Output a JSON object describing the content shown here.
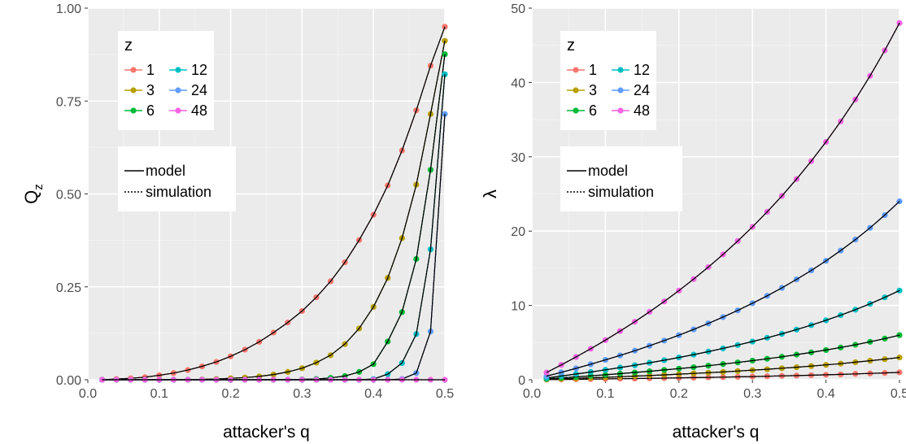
{
  "chart_data": [
    {
      "type": "line",
      "xlabel": "attacker's q",
      "ylabel": "Q",
      "ylabel_sub": "z",
      "xlim": [
        0,
        0.5
      ],
      "ylim": [
        0,
        1.0
      ],
      "x_ticks": [
        0.0,
        0.1,
        0.2,
        0.3,
        0.4,
        0.5
      ],
      "x_tick_labels": [
        "0.0",
        "0.1",
        "0.2",
        "0.3",
        "0.4",
        "0.5"
      ],
      "y_ticks": [
        0,
        0.25,
        0.5,
        0.75,
        1.0
      ],
      "y_tick_labels": [
        "0.00",
        "0.25",
        "0.50",
        "0.75",
        "1.00"
      ],
      "grid": true,
      "legend_placement": "top-left",
      "legend_title": "z",
      "line_legend": [
        "model",
        "simulation"
      ],
      "x": [
        0.02,
        0.04,
        0.06,
        0.08,
        0.1,
        0.12,
        0.14,
        0.16,
        0.18,
        0.2,
        0.22,
        0.24,
        0.26,
        0.28,
        0.3,
        0.32,
        0.34,
        0.36,
        0.38,
        0.4,
        0.42,
        0.44,
        0.46,
        0.48,
        0.5
      ],
      "series": [
        {
          "name": "1",
          "color": "#F8766D",
          "values": [
            0.0,
            0.002,
            0.004,
            0.007,
            0.012,
            0.018,
            0.026,
            0.036,
            0.048,
            0.063,
            0.081,
            0.102,
            0.127,
            0.154,
            0.185,
            0.222,
            0.265,
            0.316,
            0.376,
            0.444,
            0.523,
            0.617,
            0.725,
            0.845,
            0.95
          ]
        },
        {
          "name": "3",
          "color": "#B79F00",
          "values": [
            0.0,
            0.0,
            0.0,
            0.0,
            0.0,
            0.0,
            0.0,
            0.001,
            0.002,
            0.004,
            0.006,
            0.009,
            0.014,
            0.021,
            0.031,
            0.046,
            0.066,
            0.096,
            0.138,
            0.196,
            0.274,
            0.381,
            0.525,
            0.715,
            0.912
          ]
        },
        {
          "name": "6",
          "color": "#00BA38",
          "values": [
            0.0,
            0.0,
            0.0,
            0.0,
            0.0,
            0.0,
            0.0,
            0.0,
            0.0,
            0.0,
            0.0,
            0.0,
            0.0,
            0.0,
            0.001,
            0.002,
            0.005,
            0.01,
            0.021,
            0.042,
            0.103,
            0.182,
            0.325,
            0.565,
            0.876
          ]
        },
        {
          "name": "12",
          "color": "#00BFC4",
          "values": [
            0.0,
            0.0,
            0.0,
            0.0,
            0.0,
            0.0,
            0.0,
            0.0,
            0.0,
            0.0,
            0.0,
            0.0,
            0.0,
            0.0,
            0.0,
            0.0,
            0.0,
            0.0,
            0.0,
            0.002,
            0.015,
            0.045,
            0.123,
            0.351,
            0.822
          ]
        },
        {
          "name": "24",
          "color": "#619CFF",
          "values": [
            0.0,
            0.0,
            0.0,
            0.0,
            0.0,
            0.0,
            0.0,
            0.0,
            0.0,
            0.0,
            0.0,
            0.0,
            0.0,
            0.0,
            0.0,
            0.0,
            0.0,
            0.0,
            0.0,
            0.0,
            0.0,
            0.002,
            0.018,
            0.13,
            0.715
          ]
        },
        {
          "name": "48",
          "color": "#F564E3",
          "values": [
            0.0,
            0.0,
            0.0,
            0.0,
            0.0,
            0.0,
            0.0,
            0.0,
            0.0,
            0.0,
            0.0,
            0.0,
            0.0,
            0.0,
            0.0,
            0.0,
            0.0,
            0.0,
            0.0,
            0.0,
            0.0,
            0.0,
            0.0,
            0.0,
            0.0
          ]
        }
      ]
    },
    {
      "type": "line",
      "xlabel": "attacker's q",
      "ylabel": "λ",
      "ylabel_sub": "",
      "xlim": [
        0,
        0.5
      ],
      "ylim": [
        0,
        50
      ],
      "x_ticks": [
        0.0,
        0.1,
        0.2,
        0.3,
        0.4,
        0.5
      ],
      "x_tick_labels": [
        "0.0",
        "0.1",
        "0.2",
        "0.3",
        "0.4",
        "0.5"
      ],
      "y_ticks": [
        0,
        10,
        20,
        30,
        40,
        50
      ],
      "y_tick_labels": [
        "0",
        "10",
        "20",
        "30",
        "40",
        "50"
      ],
      "grid": true,
      "legend_placement": "top-left",
      "legend_title": "z",
      "line_legend": [
        "model",
        "simulation"
      ],
      "x": [
        0.02,
        0.04,
        0.06,
        0.08,
        0.1,
        0.12,
        0.14,
        0.16,
        0.18,
        0.2,
        0.22,
        0.24,
        0.26,
        0.28,
        0.3,
        0.32,
        0.34,
        0.36,
        0.38,
        0.4,
        0.42,
        0.44,
        0.46,
        0.48,
        0.5
      ],
      "series": [
        {
          "name": "1",
          "color": "#F8766D",
          "values": [
            0.02,
            0.04,
            0.06,
            0.09,
            0.11,
            0.14,
            0.16,
            0.19,
            0.22,
            0.25,
            0.28,
            0.32,
            0.35,
            0.39,
            0.43,
            0.47,
            0.52,
            0.56,
            0.61,
            0.67,
            0.72,
            0.79,
            0.85,
            0.92,
            1.0
          ]
        },
        {
          "name": "3",
          "color": "#B79F00",
          "values": [
            0.06,
            0.13,
            0.19,
            0.26,
            0.33,
            0.41,
            0.49,
            0.57,
            0.66,
            0.75,
            0.85,
            0.95,
            1.05,
            1.17,
            1.29,
            1.41,
            1.55,
            1.69,
            1.84,
            2.0,
            2.17,
            2.36,
            2.56,
            2.77,
            3.0
          ]
        },
        {
          "name": "6",
          "color": "#00BA38",
          "values": [
            0.12,
            0.25,
            0.38,
            0.52,
            0.67,
            0.82,
            0.98,
            1.14,
            1.32,
            1.5,
            1.69,
            1.89,
            2.11,
            2.33,
            2.57,
            2.82,
            3.09,
            3.38,
            3.68,
            4.0,
            4.34,
            4.71,
            5.11,
            5.54,
            6.0
          ]
        },
        {
          "name": "12",
          "color": "#00BFC4",
          "values": [
            0.24,
            0.5,
            0.77,
            1.04,
            1.33,
            1.64,
            1.95,
            2.29,
            2.63,
            3.0,
            3.38,
            3.79,
            4.22,
            4.67,
            5.14,
            5.65,
            6.18,
            6.75,
            7.35,
            8.0,
            8.69,
            9.43,
            10.22,
            11.08,
            12.0
          ]
        },
        {
          "name": "24",
          "color": "#619CFF",
          "values": [
            0.49,
            1.0,
            1.53,
            2.09,
            2.67,
            3.27,
            3.91,
            4.57,
            5.27,
            6.0,
            6.77,
            7.58,
            8.43,
            9.33,
            10.29,
            11.29,
            12.36,
            13.5,
            14.71,
            16.0,
            17.38,
            18.86,
            20.44,
            22.15,
            24.0
          ]
        },
        {
          "name": "48",
          "color": "#F564E3",
          "values": [
            0.98,
            2.0,
            3.06,
            4.17,
            5.33,
            6.55,
            7.81,
            9.14,
            10.54,
            12.0,
            13.54,
            15.16,
            16.86,
            18.67,
            20.57,
            22.59,
            24.73,
            27.0,
            29.42,
            32.0,
            34.76,
            37.71,
            40.89,
            44.31,
            48.0
          ]
        }
      ]
    }
  ]
}
